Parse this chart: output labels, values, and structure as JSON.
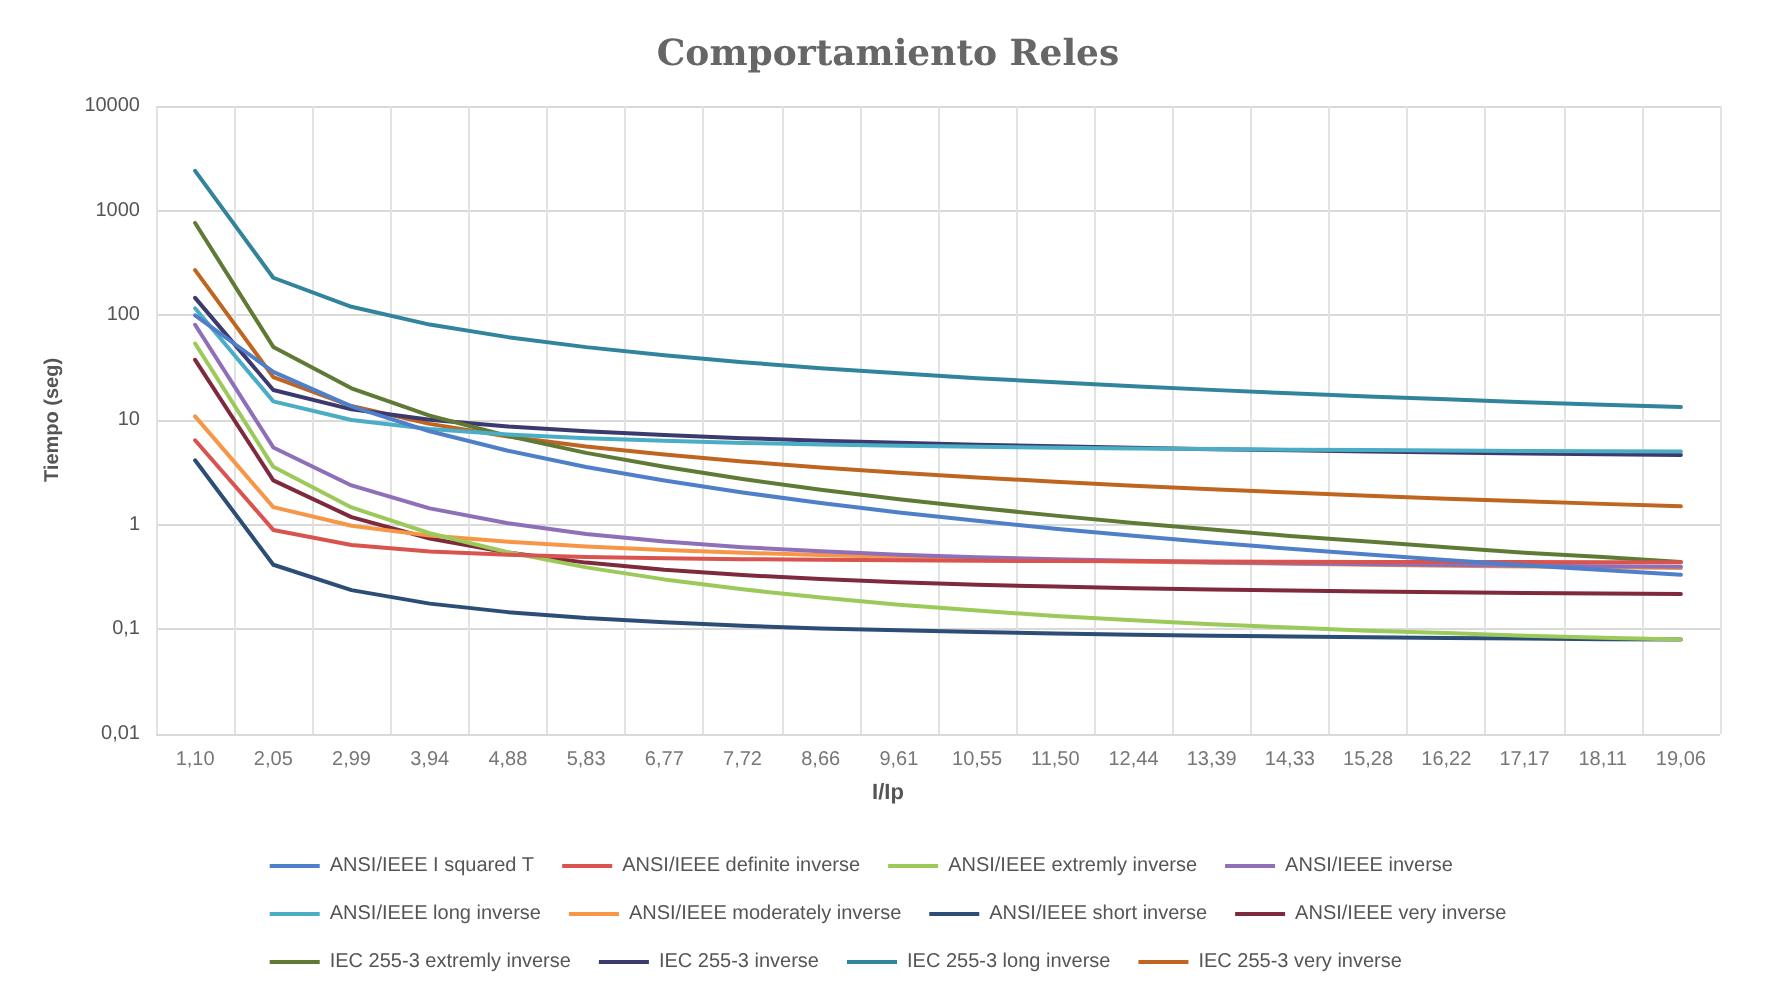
{
  "chart_data": {
    "type": "line",
    "title": "Comportamiento Reles",
    "xlabel": "I/Ip",
    "ylabel": "Tiempo (seg)",
    "categories": [
      "1,10",
      "2,05",
      "2,99",
      "3,94",
      "4,88",
      "5,83",
      "6,77",
      "7,72",
      "8,66",
      "9,61",
      "10,55",
      "11,50",
      "12,44",
      "13,39",
      "14,33",
      "15,28",
      "16,22",
      "17,17",
      "18,11",
      "19,06"
    ],
    "log": "y",
    "ylim": [
      0.01,
      10000
    ],
    "yticks": [
      {
        "value": 0.01,
        "label": "0,01"
      },
      {
        "value": 0.1,
        "label": "0,1"
      },
      1,
      10,
      100,
      1000,
      10000
    ],
    "grid": true,
    "legend": "bottom",
    "marker": "none",
    "line_style": "solid",
    "series": [
      {
        "name": "ANSI/IEEE I squared T",
        "color": "#4f7fc9",
        "values": [
          100,
          28.8,
          13.5,
          7.8,
          5.08,
          3.56,
          2.64,
          2.03,
          1.61,
          1.31,
          1.09,
          0.915,
          0.782,
          0.675,
          0.589,
          0.518,
          0.46,
          0.41,
          0.369,
          0.333
        ]
      },
      {
        "name": "ANSI/IEEE definite inverse",
        "color": "#d9534f",
        "values": [
          6.4,
          0.891,
          0.639,
          0.555,
          0.515,
          0.492,
          0.478,
          0.468,
          0.461,
          0.456,
          0.452,
          0.449,
          0.446,
          0.444,
          0.443,
          0.441,
          0.44,
          0.439,
          0.438,
          0.437
        ]
      },
      {
        "name": "ANSI/IEEE extremly inverse",
        "color": "#9bc95a",
        "values": [
          53.8,
          3.57,
          1.46,
          0.828,
          0.545,
          0.391,
          0.3,
          0.241,
          0.201,
          0.172,
          0.151,
          0.134,
          0.122,
          0.112,
          0.104,
          0.097,
          0.092,
          0.087,
          0.083,
          0.08
        ]
      },
      {
        "name": "ANSI/IEEE inverse",
        "color": "#8e6fb8",
        "values": [
          81.3,
          5.47,
          2.37,
          1.43,
          1.03,
          0.815,
          0.691,
          0.609,
          0.556,
          0.517,
          0.489,
          0.467,
          0.451,
          0.438,
          0.427,
          0.419,
          0.412,
          0.406,
          0.401,
          0.397
        ]
      },
      {
        "name": "ANSI/IEEE long inverse",
        "color": "#4bacc6",
        "values": [
          116.7,
          15.07,
          10.01,
          8.19,
          7.27,
          6.7,
          6.32,
          6.04,
          5.84,
          5.68,
          5.55,
          5.44,
          5.35,
          5.28,
          5.21,
          5.16,
          5.11,
          5.07,
          5.03,
          4.99
        ]
      },
      {
        "name": "ANSI/IEEE moderately inverse",
        "color": "#f79646",
        "values": [
          10.84,
          1.47,
          0.976,
          0.786,
          0.685,
          0.62,
          0.574,
          0.539,
          0.513,
          0.491,
          0.473,
          0.458,
          0.444,
          0.433,
          0.423,
          0.414,
          0.406,
          0.398,
          0.392,
          0.386
        ]
      },
      {
        "name": "ANSI/IEEE short inverse",
        "color": "#2c4d75",
        "values": [
          4.12,
          0.414,
          0.237,
          0.176,
          0.146,
          0.128,
          0.117,
          0.108,
          0.102,
          0.0978,
          0.0943,
          0.0913,
          0.0889,
          0.0869,
          0.0853,
          0.0839,
          0.0827,
          0.0816,
          0.0806,
          0.0798
        ]
      },
      {
        "name": "ANSI/IEEE very inverse",
        "color": "#7f2a3c",
        "values": [
          37.6,
          2.65,
          1.18,
          0.738,
          0.541,
          0.434,
          0.371,
          0.33,
          0.302,
          0.282,
          0.267,
          0.256,
          0.247,
          0.24,
          0.235,
          0.23,
          0.226,
          0.223,
          0.22,
          0.218
        ]
      },
      {
        "name": "IEC 255-3 extremly inverse",
        "color": "#5f7a35",
        "values": [
          762,
          49.9,
          20.1,
          11.01,
          7.03,
          4.85,
          3.57,
          2.73,
          2.16,
          1.75,
          1.45,
          1.22,
          1.04,
          0.9,
          0.78,
          0.69,
          0.61,
          0.54,
          0.49,
          0.44
        ]
      },
      {
        "name": "IEC 255-3 inverse",
        "color": "#3b3a6e",
        "values": [
          146.8,
          19.36,
          12.64,
          10.07,
          8.69,
          7.8,
          7.18,
          6.71,
          6.35,
          6.05,
          5.81,
          5.6,
          5.42,
          5.26,
          5.13,
          5,
          4.89,
          4.79,
          4.7,
          4.62
        ]
      },
      {
        "name": "IEC 255-3 long inverse",
        "color": "#31849b",
        "values": [
          2400,
          228.6,
          120.6,
          81.6,
          61.9,
          49.7,
          41.6,
          35.7,
          31.3,
          27.9,
          25.1,
          22.9,
          21,
          19.4,
          18,
          16.8,
          15.8,
          14.8,
          14,
          13.3
        ]
      },
      {
        "name": "IEC 255-3 very inverse",
        "color": "#c0651f",
        "values": [
          270,
          25.7,
          13.6,
          9.18,
          6.96,
          5.59,
          4.68,
          4.02,
          3.52,
          3.14,
          2.83,
          2.57,
          2.36,
          2.18,
          2.03,
          1.89,
          1.77,
          1.67,
          1.58,
          1.5
        ]
      }
    ]
  }
}
